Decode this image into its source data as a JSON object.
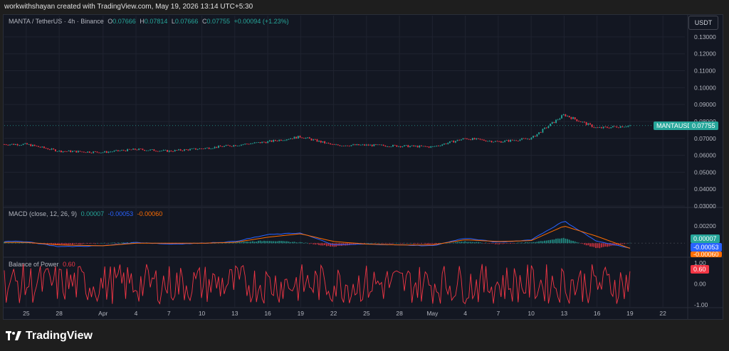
{
  "header": {
    "attribution": "workwithshayan created with TradingView.com, May 19, 2026 13:14 UTC+5:30"
  },
  "symbol_legend": {
    "name": "MANTA / TetherUS · 4h · Binance",
    "o_label": "O",
    "o": "0.07666",
    "h_label": "H",
    "h": "0.07814",
    "l_label": "L",
    "l": "0.07666",
    "c_label": "C",
    "c": "0.07755",
    "change": "+0.00094 (+1.23%)"
  },
  "currency_button": "USDT",
  "price_tag": {
    "symbol": "MANTAUSDT",
    "value": "0.07755"
  },
  "macd_legend": {
    "name": "MACD (close, 12, 26, 9)",
    "hist": "0.00007",
    "macd": "-0.00053",
    "signal": "-0.00060"
  },
  "macd_tags": {
    "hist": "0.00007",
    "macd": "-0.00053",
    "signal": "-0.00060"
  },
  "bop_legend": {
    "name": "Balance of Power",
    "value": "0.60"
  },
  "bop_tag": "0.60",
  "brand": "TradingView",
  "colors": {
    "up": "#26a69a",
    "down": "#f23645",
    "macd": "#2962ff",
    "signal": "#ff6d00",
    "bop": "#f23645",
    "bg": "#131722"
  },
  "chart_data": [
    {
      "type": "candlestick",
      "title": "MANTA / TetherUS · 4h · Binance",
      "y_axis_ticks": [
        "0.13000",
        "0.12000",
        "0.11000",
        "0.10000",
        "0.09000",
        "0.08000",
        "0.07000",
        "0.06000",
        "0.05000",
        "0.04000",
        "0.03000"
      ],
      "ylim": [
        0.03,
        0.135
      ],
      "x_axis_ticks": [
        "25",
        "28",
        "Apr",
        "4",
        "7",
        "10",
        "13",
        "16",
        "19",
        "22",
        "25",
        "28",
        "May",
        "4",
        "7",
        "10",
        "13",
        "16",
        "19",
        "22"
      ],
      "x_dates": [
        "2026-03-25",
        "2026-03-28",
        "2026-04-01",
        "2026-04-04",
        "2026-04-07",
        "2026-04-10",
        "2026-04-13",
        "2026-04-16",
        "2026-04-19",
        "2026-04-22",
        "2026-04-25",
        "2026-04-28",
        "2026-05-01",
        "2026-05-04",
        "2026-05-07",
        "2026-05-10",
        "2026-05-13",
        "2026-05-16",
        "2026-05-19"
      ],
      "close_at_dates": [
        0.0665,
        0.0625,
        0.0618,
        0.0635,
        0.0625,
        0.064,
        0.066,
        0.068,
        0.071,
        0.066,
        0.066,
        0.0655,
        0.065,
        0.07,
        0.068,
        0.07,
        0.084,
        0.076,
        0.07755
      ],
      "grid": true
    },
    {
      "type": "line",
      "title": "MACD (close, 12, 26, 9)",
      "y_axis_ticks": [
        "0.00200",
        "0.00000"
      ],
      "ylim": [
        -0.0013,
        0.0035
      ],
      "x_dates": [
        "2026-03-25",
        "2026-03-28",
        "2026-04-01",
        "2026-04-04",
        "2026-04-07",
        "2026-04-10",
        "2026-04-13",
        "2026-04-16",
        "2026-04-19",
        "2026-04-22",
        "2026-04-25",
        "2026-04-28",
        "2026-05-01",
        "2026-05-04",
        "2026-05-07",
        "2026-05-10",
        "2026-05-13",
        "2026-05-16",
        "2026-05-19"
      ],
      "series": [
        {
          "name": "MACD",
          "values": [
            0.0002,
            -0.0004,
            -0.0003,
            0.0001,
            -0.0001,
            0.0,
            0.0002,
            0.001,
            0.0012,
            -0.0002,
            -0.0001,
            -0.0002,
            -0.0003,
            0.0006,
            0.0001,
            0.0004,
            0.0026,
            0.0002,
            -0.00053
          ]
        },
        {
          "name": "Signal",
          "values": [
            0.0001,
            -0.0002,
            -0.0003,
            0.0,
            0.0,
            0.0,
            0.0001,
            0.0007,
            0.0011,
            0.0002,
            -0.0001,
            -0.0002,
            -0.0002,
            0.0004,
            0.0002,
            0.0003,
            0.002,
            0.0008,
            -0.0006
          ]
        }
      ],
      "histogram": [
        0.0001,
        -0.0002,
        0.0,
        0.0001,
        -0.0001,
        0.0,
        0.0001,
        0.0003,
        0.0001,
        -0.0004,
        0.0,
        0.0,
        -0.0001,
        0.0002,
        -0.0001,
        0.0001,
        0.0006,
        -0.0006,
        7e-05
      ]
    },
    {
      "type": "line",
      "title": "Balance of Power",
      "y_axis_ticks": [
        "1.00",
        "0.00",
        "-1.00"
      ],
      "ylim": [
        -1.1,
        1.1
      ],
      "series": [
        {
          "name": "Balance of Power",
          "last": 0.6
        }
      ]
    }
  ]
}
